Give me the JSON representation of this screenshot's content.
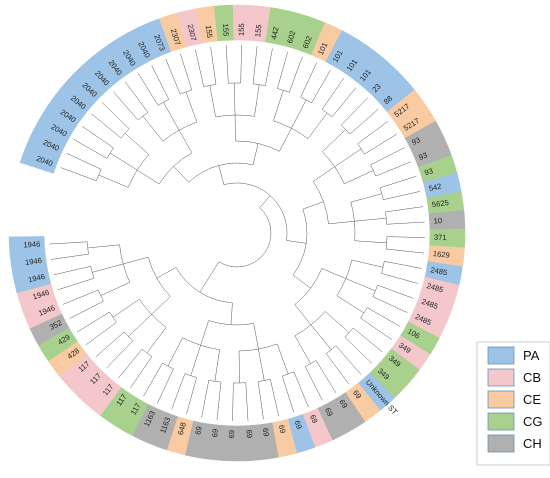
{
  "colors": {
    "PA": "#9dc3e6",
    "CB": "#f4c7cb",
    "CE": "#f8cba3",
    "CG": "#a9d18e",
    "CH": "#b0b0b0",
    "branch": "#555555"
  },
  "legend": [
    {
      "key": "PA",
      "label": "PA"
    },
    {
      "key": "CB",
      "label": "CB"
    },
    {
      "key": "CE",
      "label": "CE"
    },
    {
      "key": "CG",
      "label": "CG"
    },
    {
      "key": "CH",
      "label": "CH"
    }
  ],
  "ring_segments": [
    {
      "label": "2040",
      "group": "PA"
    },
    {
      "label": "2040",
      "group": "PA"
    },
    {
      "label": "2040",
      "group": "PA"
    },
    {
      "label": "2040",
      "group": "PA"
    },
    {
      "label": "2040",
      "group": "PA"
    },
    {
      "label": "2040",
      "group": "PA"
    },
    {
      "label": "2040",
      "group": "PA"
    },
    {
      "label": "2040",
      "group": "PA"
    },
    {
      "label": "2040",
      "group": "PA"
    },
    {
      "label": "2040",
      "group": "PA"
    },
    {
      "label": "2073",
      "group": "PA"
    },
    {
      "label": "2307",
      "group": "CE"
    },
    {
      "label": "2307",
      "group": "CB"
    },
    {
      "label": "155",
      "group": "CE"
    },
    {
      "label": "155",
      "group": "CG"
    },
    {
      "label": "155",
      "group": "CB"
    },
    {
      "label": "155",
      "group": "CB"
    },
    {
      "label": "442",
      "group": "CG"
    },
    {
      "label": "602",
      "group": "CG"
    },
    {
      "label": "602",
      "group": "CG"
    },
    {
      "label": "101",
      "group": "CE"
    },
    {
      "label": "101",
      "group": "PA"
    },
    {
      "label": "101",
      "group": "PA"
    },
    {
      "label": "101",
      "group": "PA"
    },
    {
      "label": "23",
      "group": "PA"
    },
    {
      "label": "88",
      "group": "PA"
    },
    {
      "label": "5217",
      "group": "CE"
    },
    {
      "label": "5217",
      "group": "CE"
    },
    {
      "label": "93",
      "group": "CH"
    },
    {
      "label": "93",
      "group": "CH"
    },
    {
      "label": "93",
      "group": "CG"
    },
    {
      "label": "542",
      "group": "PA"
    },
    {
      "label": "5625",
      "group": "CG"
    },
    {
      "label": "10",
      "group": "CH"
    },
    {
      "label": "371",
      "group": "CG"
    },
    {
      "label": "1629",
      "group": "CE"
    },
    {
      "label": "2485",
      "group": "PA"
    },
    {
      "label": "2485",
      "group": "CB"
    },
    {
      "label": "2485",
      "group": "CB"
    },
    {
      "label": "2485",
      "group": "CB"
    },
    {
      "label": "106",
      "group": "CG"
    },
    {
      "label": "349",
      "group": "CB"
    },
    {
      "label": "349",
      "group": "CG"
    },
    {
      "label": "349",
      "group": "CG"
    },
    {
      "label": "Unknown ST",
      "group": "PA"
    },
    {
      "label": "69",
      "group": "CE"
    },
    {
      "label": "69",
      "group": "CH"
    },
    {
      "label": "69",
      "group": "CH"
    },
    {
      "label": "69",
      "group": "CB"
    },
    {
      "label": "69",
      "group": "PA"
    },
    {
      "label": "69",
      "group": "CE"
    },
    {
      "label": "69",
      "group": "CH"
    },
    {
      "label": "69",
      "group": "CH"
    },
    {
      "label": "69",
      "group": "CH"
    },
    {
      "label": "69",
      "group": "CH"
    },
    {
      "label": "69",
      "group": "CH"
    },
    {
      "label": "648",
      "group": "CE"
    },
    {
      "label": "1163",
      "group": "CH"
    },
    {
      "label": "1163",
      "group": "CH"
    },
    {
      "label": "117",
      "group": "CG"
    },
    {
      "label": "117",
      "group": "CG"
    },
    {
      "label": "117",
      "group": "CB"
    },
    {
      "label": "117",
      "group": "CB"
    },
    {
      "label": "117",
      "group": "CB"
    },
    {
      "label": "428",
      "group": "CE"
    },
    {
      "label": "429",
      "group": "CG"
    },
    {
      "label": "352",
      "group": "CH"
    },
    {
      "label": "1946",
      "group": "CB"
    },
    {
      "label": "1946",
      "group": "CB"
    },
    {
      "label": "1946",
      "group": "PA"
    },
    {
      "label": "1946",
      "group": "PA"
    },
    {
      "label": "1946",
      "group": "PA"
    }
  ]
}
